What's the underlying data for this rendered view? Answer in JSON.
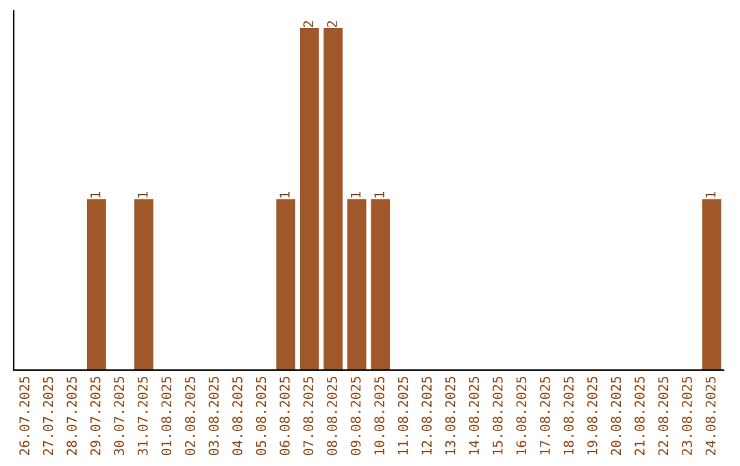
{
  "chart_data": {
    "type": "bar",
    "categories": [
      "26.07.2025",
      "27.07.2025",
      "28.07.2025",
      "29.07.2025",
      "30.07.2025",
      "31.07.2025",
      "01.08.2025",
      "02.08.2025",
      "03.08.2025",
      "04.08.2025",
      "05.08.2025",
      "06.08.2025",
      "07.08.2025",
      "08.08.2025",
      "09.08.2025",
      "10.08.2025",
      "11.08.2025",
      "12.08.2025",
      "13.08.2025",
      "14.08.2025",
      "15.08.2025",
      "16.08.2025",
      "17.08.2025",
      "18.08.2025",
      "19.08.2025",
      "20.08.2025",
      "21.08.2025",
      "22.08.2025",
      "23.08.2025",
      "24.08.2025"
    ],
    "values": [
      0,
      0,
      0,
      1,
      0,
      1,
      0,
      0,
      0,
      0,
      0,
      1,
      2,
      2,
      1,
      1,
      0,
      0,
      0,
      0,
      0,
      0,
      0,
      0,
      0,
      0,
      0,
      0,
      0,
      1
    ],
    "color": "#a0582a",
    "value_labels": [
      null,
      null,
      null,
      "1",
      null,
      "1",
      null,
      null,
      null,
      null,
      null,
      "1",
      "2",
      "2",
      "1",
      "1",
      null,
      null,
      null,
      null,
      null,
      null,
      null,
      null,
      null,
      null,
      null,
      null,
      null,
      "1"
    ],
    "tick_labels": "x",
    "grid": false
  }
}
